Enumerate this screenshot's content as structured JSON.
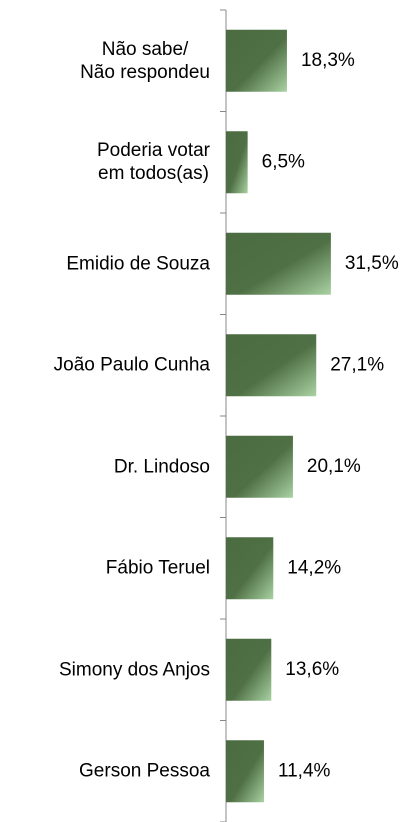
{
  "chart_data": {
    "type": "barh",
    "categories": [
      "Não sabe/\nNão respondeu",
      "Poderia votar\nem todos(as)",
      "Emidio de Souza",
      "João Paulo Cunha",
      "Dr. Lindoso",
      "Fábio Teruel",
      "Simony dos Anjos",
      "Gerson Pessoa"
    ],
    "values": [
      18.3,
      6.5,
      31.5,
      27.1,
      20.1,
      14.2,
      13.6,
      11.4
    ],
    "value_labels": [
      "18,3%",
      "6,5%",
      "31,5%",
      "27,1%",
      "20,1%",
      "14,2%",
      "13,6%",
      "11,4%"
    ],
    "color": "#4b6b40"
  }
}
